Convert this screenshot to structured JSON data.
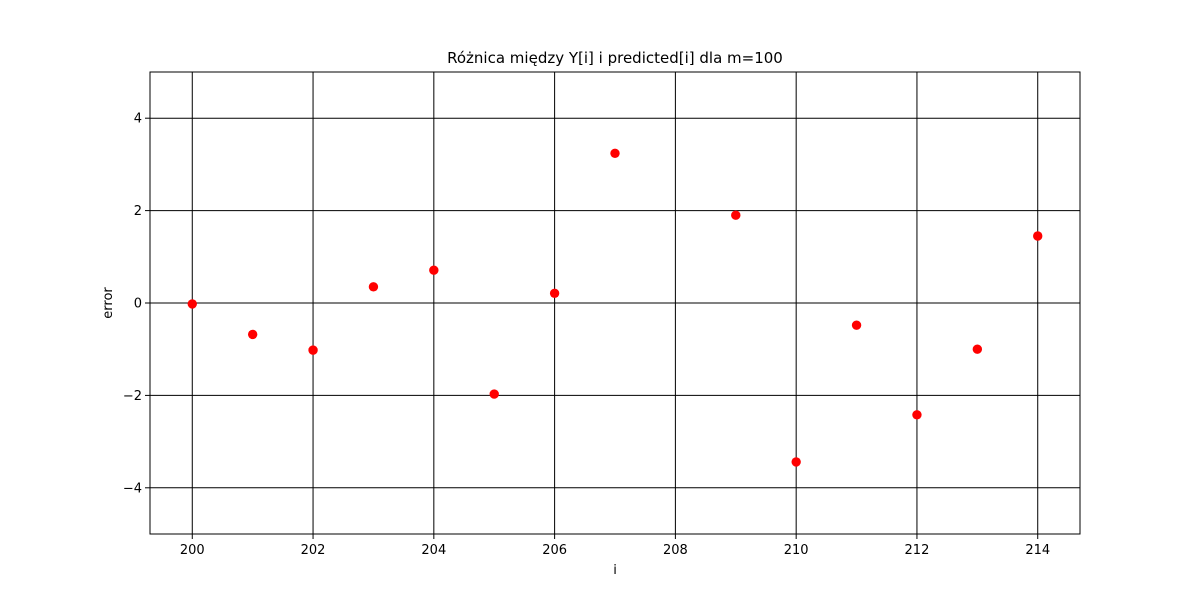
{
  "chart_data": {
    "type": "scatter",
    "title": "Różnica między Y[i] i predicted[i] dla m=100",
    "xlabel": "i",
    "ylabel": "error",
    "xlim": [
      199.3,
      214.7
    ],
    "ylim": [
      -5,
      5
    ],
    "xticks": [
      200,
      202,
      204,
      206,
      208,
      210,
      212,
      214
    ],
    "xtick_labels": [
      "200",
      "202",
      "204",
      "206",
      "208",
      "210",
      "212",
      "214"
    ],
    "yticks": [
      -4,
      -2,
      0,
      2,
      4
    ],
    "ytick_labels": [
      "−4",
      "−2",
      "0",
      "2",
      "4"
    ],
    "grid": true,
    "marker_color": "#ff0000",
    "series": [
      {
        "x": [
          200,
          201,
          202,
          203,
          204,
          205,
          206,
          207,
          209,
          210,
          211,
          212,
          213,
          214
        ],
        "y": [
          -0.02,
          -0.68,
          -1.02,
          0.35,
          0.71,
          -1.97,
          0.21,
          3.24,
          1.9,
          -3.44,
          -0.48,
          -2.42,
          -1.0,
          1.45
        ]
      }
    ]
  }
}
